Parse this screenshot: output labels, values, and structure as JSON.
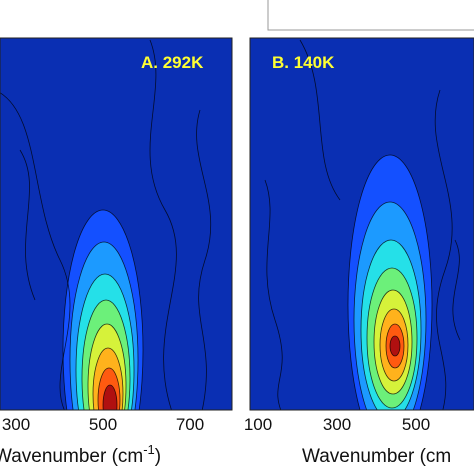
{
  "chart_data": [
    {
      "type": "heatmap",
      "panel_label": "A. 292K",
      "xlabel": "Wavenumber (cm",
      "xlabel_superscript": "-1",
      "xlabel_suffix": ")",
      "x_ticks": [
        "300",
        "500",
        "700"
      ],
      "x_tick_values": [
        300,
        500,
        700
      ],
      "xlim": [
        100,
        800
      ],
      "peak": {
        "x": 500,
        "intensity_level": "max"
      },
      "colormap": [
        "#0a2fb3",
        "#1450ff",
        "#1c9aff",
        "#25e0e8",
        "#6cf07a",
        "#d6f23a",
        "#ffb21c",
        "#ff5a10",
        "#b01010"
      ]
    },
    {
      "type": "heatmap",
      "panel_label": "B. 140K",
      "xlabel": "Wavenumber (cm",
      "xlabel_suffix": ")",
      "x_ticks": [
        "100",
        "300",
        "500"
      ],
      "x_tick_values": [
        100,
        300,
        500
      ],
      "xlim": [
        100,
        800
      ],
      "peak": {
        "x": 450,
        "intensity_level": "max"
      },
      "colormap": [
        "#0a2fb3",
        "#1450ff",
        "#1c9aff",
        "#25e0e8",
        "#6cf07a",
        "#d6f23a",
        "#ffb21c",
        "#ff5a10",
        "#b01010"
      ]
    }
  ]
}
